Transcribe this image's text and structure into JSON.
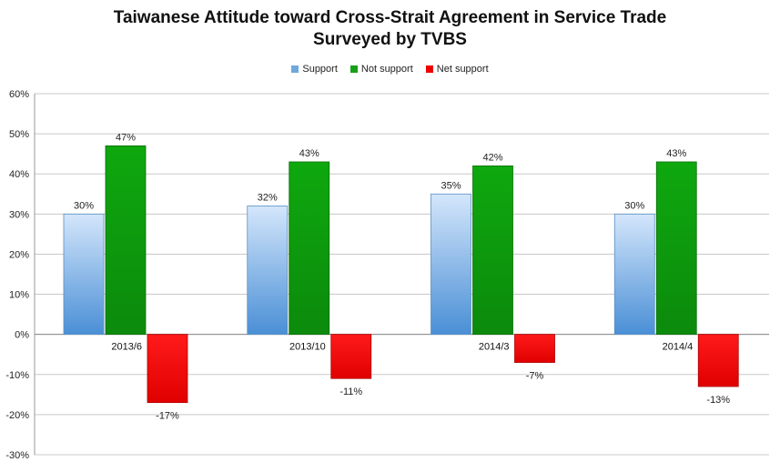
{
  "chart_data": {
    "type": "bar",
    "title": "Taiwanese Attitude toward Cross-Strait Agreement in Service Trade",
    "subtitle": "Surveyed by TVBS",
    "categories": [
      "2013/6",
      "2013/10",
      "2014/3",
      "2014/4"
    ],
    "series": [
      {
        "name": "Support",
        "values": [
          30,
          32,
          35,
          30
        ],
        "labels": [
          "30%",
          "32%",
          "35%",
          "30%"
        ],
        "color": "#6fa8dc"
      },
      {
        "name": "Not support",
        "values": [
          47,
          43,
          42,
          43
        ],
        "labels": [
          "47%",
          "43%",
          "42%",
          "43%"
        ],
        "color": "#17a017"
      },
      {
        "name": "Net support",
        "values": [
          -17,
          -11,
          -7,
          -13
        ],
        "labels": [
          "-17%",
          "-11%",
          "-7%",
          "-13%"
        ],
        "color": "#ee0000"
      }
    ],
    "ylim": [
      -30,
      60
    ],
    "yticks": [
      60,
      50,
      40,
      30,
      20,
      10,
      0,
      -10,
      -20,
      -30
    ],
    "ytick_labels": [
      "60%",
      "50%",
      "40%",
      "30%",
      "20%",
      "10%",
      "0%",
      "-10%",
      "-20%",
      "-30%"
    ],
    "grid": true,
    "legend_position": "top"
  }
}
